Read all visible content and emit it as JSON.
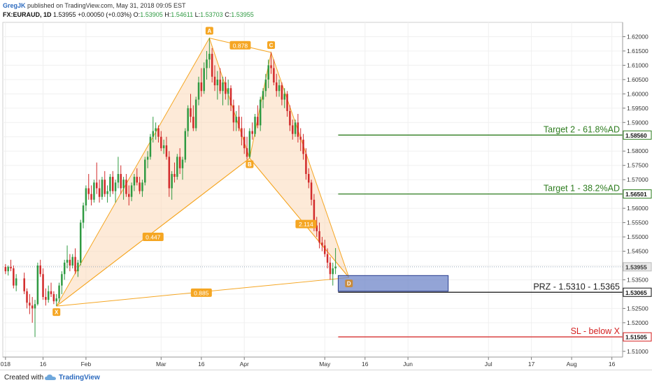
{
  "header": {
    "author": "GregJK",
    "published": "published on TradingView.com, May 31, 2018 09:05 EST",
    "symbol": "FX:EURAUD, 1D",
    "last": "1.53955",
    "change": "+0.00050 (+0.03%)",
    "o_label": "O:",
    "o": "1.53905",
    "h_label": "H:",
    "h": "1.54611",
    "l_label": "L:",
    "l": "1.53703",
    "c_label": "C:",
    "c": "1.53955"
  },
  "footer": {
    "created": "Created with",
    "brand": "TradingView"
  },
  "colors": {
    "up": "#2f9a42",
    "down": "#d22a2a",
    "pattern_line": "#f5a623",
    "pattern_fill": "#fbd9b8",
    "target": "#2e7d1f",
    "stop": "#d41f1f",
    "prz_fill": "#6f86c8",
    "prz_edge": "#2a3f8f"
  },
  "chart_data": {
    "type": "candlestick",
    "instrument": "FX:EURAUD",
    "timeframe": "1D",
    "ylim": [
      1.508,
      1.625
    ],
    "y_ticks": [
      "1.51000",
      "1.51500",
      "1.52000",
      "1.52500",
      "1.53000",
      "1.53500",
      "1.54000",
      "1.54500",
      "1.55000",
      "1.55500",
      "1.56000",
      "1.56500",
      "1.57000",
      "1.57500",
      "1.58000",
      "1.58500",
      "1.59000",
      "1.59500",
      "1.60000",
      "1.60500",
      "1.61000",
      "1.61500",
      "1.62000"
    ],
    "x_ticks": [
      {
        "label": "018",
        "day": 0
      },
      {
        "label": "16",
        "day": 14
      },
      {
        "label": "Feb",
        "day": 30
      },
      {
        "label": "Mar",
        "day": 58
      },
      {
        "label": "16",
        "day": 73
      },
      {
        "label": "Apr",
        "day": 89
      },
      {
        "label": "May",
        "day": 119
      },
      {
        "label": "16",
        "day": 134
      },
      {
        "label": "Jun",
        "day": 150
      },
      {
        "label": "Jul",
        "day": 180
      },
      {
        "label": "17",
        "day": 196
      },
      {
        "label": "Aug",
        "day": 211
      },
      {
        "label": "16",
        "day": 226
      }
    ],
    "candles": [
      {
        "d": 0,
        "o": 1.5395,
        "h": 1.5405,
        "l": 1.537,
        "c": 1.538
      },
      {
        "d": 1,
        "o": 1.538,
        "h": 1.54,
        "l": 1.5365,
        "c": 1.5395
      },
      {
        "d": 2,
        "o": 1.5395,
        "h": 1.542,
        "l": 1.538,
        "c": 1.539
      },
      {
        "d": 3,
        "o": 1.539,
        "h": 1.54,
        "l": 1.532,
        "c": 1.533
      },
      {
        "d": 4,
        "o": 1.533,
        "h": 1.537,
        "l": 1.531,
        "c": 1.5355
      },
      {
        "d": 7,
        "o": 1.5355,
        "h": 1.5375,
        "l": 1.53,
        "c": 1.531
      },
      {
        "d": 8,
        "o": 1.531,
        "h": 1.532,
        "l": 1.525,
        "c": 1.527
      },
      {
        "d": 9,
        "o": 1.527,
        "h": 1.53,
        "l": 1.523,
        "c": 1.526
      },
      {
        "d": 10,
        "o": 1.526,
        "h": 1.529,
        "l": 1.52,
        "c": 1.525
      },
      {
        "d": 11,
        "o": 1.525,
        "h": 1.528,
        "l": 1.515,
        "c": 1.5265
      },
      {
        "d": 12,
        "o": 1.5265,
        "h": 1.541,
        "l": 1.526,
        "c": 1.54
      },
      {
        "d": 13,
        "o": 1.54,
        "h": 1.542,
        "l": 1.536,
        "c": 1.537
      },
      {
        "d": 14,
        "o": 1.537,
        "h": 1.539,
        "l": 1.528,
        "c": 1.529
      },
      {
        "d": 15,
        "o": 1.529,
        "h": 1.532,
        "l": 1.526,
        "c": 1.528
      },
      {
        "d": 16,
        "o": 1.528,
        "h": 1.533,
        "l": 1.527,
        "c": 1.531
      },
      {
        "d": 17,
        "o": 1.531,
        "h": 1.534,
        "l": 1.529,
        "c": 1.53
      },
      {
        "d": 18,
        "o": 1.53,
        "h": 1.531,
        "l": 1.5265,
        "c": 1.5275
      },
      {
        "d": 19,
        "o": 1.5275,
        "h": 1.53,
        "l": 1.5258,
        "c": 1.5285
      },
      {
        "d": 20,
        "o": 1.5285,
        "h": 1.534,
        "l": 1.527,
        "c": 1.533
      },
      {
        "d": 21,
        "o": 1.533,
        "h": 1.538,
        "l": 1.53,
        "c": 1.537
      },
      {
        "d": 22,
        "o": 1.537,
        "h": 1.542,
        "l": 1.535,
        "c": 1.541
      },
      {
        "d": 23,
        "o": 1.541,
        "h": 1.547,
        "l": 1.539,
        "c": 1.542
      },
      {
        "d": 24,
        "o": 1.542,
        "h": 1.544,
        "l": 1.538,
        "c": 1.54
      },
      {
        "d": 25,
        "o": 1.54,
        "h": 1.544,
        "l": 1.539,
        "c": 1.543
      },
      {
        "d": 26,
        "o": 1.543,
        "h": 1.546,
        "l": 1.537,
        "c": 1.538
      },
      {
        "d": 27,
        "o": 1.538,
        "h": 1.542,
        "l": 1.536,
        "c": 1.541
      },
      {
        "d": 28,
        "o": 1.541,
        "h": 1.556,
        "l": 1.54,
        "c": 1.555
      },
      {
        "d": 29,
        "o": 1.555,
        "h": 1.562,
        "l": 1.553,
        "c": 1.561
      },
      {
        "d": 30,
        "o": 1.561,
        "h": 1.568,
        "l": 1.559,
        "c": 1.567
      },
      {
        "d": 31,
        "o": 1.567,
        "h": 1.572,
        "l": 1.563,
        "c": 1.565
      },
      {
        "d": 32,
        "o": 1.565,
        "h": 1.568,
        "l": 1.561,
        "c": 1.563
      },
      {
        "d": 33,
        "o": 1.563,
        "h": 1.57,
        "l": 1.562,
        "c": 1.569
      },
      {
        "d": 34,
        "o": 1.569,
        "h": 1.576,
        "l": 1.565,
        "c": 1.567
      },
      {
        "d": 35,
        "o": 1.567,
        "h": 1.57,
        "l": 1.562,
        "c": 1.564
      },
      {
        "d": 36,
        "o": 1.564,
        "h": 1.571,
        "l": 1.563,
        "c": 1.57
      },
      {
        "d": 37,
        "o": 1.57,
        "h": 1.573,
        "l": 1.564,
        "c": 1.565
      },
      {
        "d": 38,
        "o": 1.565,
        "h": 1.568,
        "l": 1.562,
        "c": 1.566
      },
      {
        "d": 39,
        "o": 1.566,
        "h": 1.572,
        "l": 1.564,
        "c": 1.571
      },
      {
        "d": 40,
        "o": 1.571,
        "h": 1.573,
        "l": 1.565,
        "c": 1.566
      },
      {
        "d": 41,
        "o": 1.566,
        "h": 1.57,
        "l": 1.562,
        "c": 1.569
      },
      {
        "d": 42,
        "o": 1.569,
        "h": 1.578,
        "l": 1.567,
        "c": 1.572
      },
      {
        "d": 43,
        "o": 1.572,
        "h": 1.575,
        "l": 1.565,
        "c": 1.567
      },
      {
        "d": 44,
        "o": 1.567,
        "h": 1.571,
        "l": 1.563,
        "c": 1.57
      },
      {
        "d": 45,
        "o": 1.57,
        "h": 1.572,
        "l": 1.564,
        "c": 1.565
      },
      {
        "d": 46,
        "o": 1.565,
        "h": 1.568,
        "l": 1.561,
        "c": 1.564
      },
      {
        "d": 47,
        "o": 1.564,
        "h": 1.569,
        "l": 1.5625,
        "c": 1.568
      },
      {
        "d": 48,
        "o": 1.568,
        "h": 1.572,
        "l": 1.566,
        "c": 1.571
      },
      {
        "d": 49,
        "o": 1.571,
        "h": 1.574,
        "l": 1.568,
        "c": 1.569
      },
      {
        "d": 50,
        "o": 1.569,
        "h": 1.571,
        "l": 1.565,
        "c": 1.566
      },
      {
        "d": 51,
        "o": 1.566,
        "h": 1.57,
        "l": 1.564,
        "c": 1.569
      },
      {
        "d": 52,
        "o": 1.569,
        "h": 1.578,
        "l": 1.568,
        "c": 1.577
      },
      {
        "d": 53,
        "o": 1.577,
        "h": 1.58,
        "l": 1.574,
        "c": 1.578
      },
      {
        "d": 54,
        "o": 1.578,
        "h": 1.586,
        "l": 1.577,
        "c": 1.585
      },
      {
        "d": 55,
        "o": 1.585,
        "h": 1.592,
        "l": 1.583,
        "c": 1.587
      },
      {
        "d": 56,
        "o": 1.587,
        "h": 1.59,
        "l": 1.584,
        "c": 1.588
      },
      {
        "d": 57,
        "o": 1.588,
        "h": 1.589,
        "l": 1.583,
        "c": 1.585
      },
      {
        "d": 58,
        "o": 1.585,
        "h": 1.587,
        "l": 1.58,
        "c": 1.581
      },
      {
        "d": 59,
        "o": 1.581,
        "h": 1.584,
        "l": 1.579,
        "c": 1.582
      },
      {
        "d": 60,
        "o": 1.582,
        "h": 1.585,
        "l": 1.577,
        "c": 1.578
      },
      {
        "d": 61,
        "o": 1.578,
        "h": 1.58,
        "l": 1.564,
        "c": 1.567
      },
      {
        "d": 62,
        "o": 1.567,
        "h": 1.573,
        "l": 1.563,
        "c": 1.572
      },
      {
        "d": 63,
        "o": 1.572,
        "h": 1.576,
        "l": 1.569,
        "c": 1.571
      },
      {
        "d": 64,
        "o": 1.571,
        "h": 1.579,
        "l": 1.57,
        "c": 1.578
      },
      {
        "d": 65,
        "o": 1.578,
        "h": 1.581,
        "l": 1.572,
        "c": 1.574
      },
      {
        "d": 66,
        "o": 1.574,
        "h": 1.578,
        "l": 1.57,
        "c": 1.577
      },
      {
        "d": 67,
        "o": 1.577,
        "h": 1.588,
        "l": 1.576,
        "c": 1.587
      },
      {
        "d": 68,
        "o": 1.587,
        "h": 1.596,
        "l": 1.585,
        "c": 1.595
      },
      {
        "d": 69,
        "o": 1.595,
        "h": 1.6,
        "l": 1.59,
        "c": 1.592
      },
      {
        "d": 70,
        "o": 1.592,
        "h": 1.596,
        "l": 1.587,
        "c": 1.588
      },
      {
        "d": 71,
        "o": 1.588,
        "h": 1.599,
        "l": 1.587,
        "c": 1.598
      },
      {
        "d": 72,
        "o": 1.598,
        "h": 1.606,
        "l": 1.596,
        "c": 1.604
      },
      {
        "d": 73,
        "o": 1.604,
        "h": 1.609,
        "l": 1.599,
        "c": 1.601
      },
      {
        "d": 74,
        "o": 1.601,
        "h": 1.611,
        "l": 1.6,
        "c": 1.609
      },
      {
        "d": 75,
        "o": 1.609,
        "h": 1.615,
        "l": 1.605,
        "c": 1.612
      },
      {
        "d": 76,
        "o": 1.612,
        "h": 1.6195,
        "l": 1.609,
        "c": 1.614
      },
      {
        "d": 77,
        "o": 1.614,
        "h": 1.616,
        "l": 1.604,
        "c": 1.606
      },
      {
        "d": 78,
        "o": 1.606,
        "h": 1.61,
        "l": 1.601,
        "c": 1.603
      },
      {
        "d": 79,
        "o": 1.603,
        "h": 1.608,
        "l": 1.598,
        "c": 1.605
      },
      {
        "d": 80,
        "o": 1.605,
        "h": 1.609,
        "l": 1.6,
        "c": 1.601
      },
      {
        "d": 81,
        "o": 1.601,
        "h": 1.606,
        "l": 1.596,
        "c": 1.604
      },
      {
        "d": 82,
        "o": 1.604,
        "h": 1.606,
        "l": 1.598,
        "c": 1.6
      },
      {
        "d": 83,
        "o": 1.6,
        "h": 1.605,
        "l": 1.596,
        "c": 1.602
      },
      {
        "d": 84,
        "o": 1.602,
        "h": 1.603,
        "l": 1.594,
        "c": 1.596
      },
      {
        "d": 85,
        "o": 1.596,
        "h": 1.598,
        "l": 1.587,
        "c": 1.59
      },
      {
        "d": 86,
        "o": 1.59,
        "h": 1.594,
        "l": 1.587,
        "c": 1.592
      },
      {
        "d": 87,
        "o": 1.592,
        "h": 1.596,
        "l": 1.587,
        "c": 1.588
      },
      {
        "d": 88,
        "o": 1.588,
        "h": 1.592,
        "l": 1.582,
        "c": 1.585
      },
      {
        "d": 89,
        "o": 1.585,
        "h": 1.588,
        "l": 1.579,
        "c": 1.581
      },
      {
        "d": 90,
        "o": 1.581,
        "h": 1.585,
        "l": 1.577,
        "c": 1.578
      },
      {
        "d": 91,
        "o": 1.578,
        "h": 1.588,
        "l": 1.5775,
        "c": 1.587
      },
      {
        "d": 92,
        "o": 1.587,
        "h": 1.59,
        "l": 1.584,
        "c": 1.586
      },
      {
        "d": 93,
        "o": 1.586,
        "h": 1.593,
        "l": 1.585,
        "c": 1.592
      },
      {
        "d": 94,
        "o": 1.592,
        "h": 1.596,
        "l": 1.588,
        "c": 1.589
      },
      {
        "d": 95,
        "o": 1.589,
        "h": 1.599,
        "l": 1.587,
        "c": 1.598
      },
      {
        "d": 96,
        "o": 1.598,
        "h": 1.602,
        "l": 1.595,
        "c": 1.601
      },
      {
        "d": 97,
        "o": 1.601,
        "h": 1.607,
        "l": 1.599,
        "c": 1.605
      },
      {
        "d": 98,
        "o": 1.605,
        "h": 1.612,
        "l": 1.602,
        "c": 1.61
      },
      {
        "d": 99,
        "o": 1.61,
        "h": 1.6145,
        "l": 1.607,
        "c": 1.609
      },
      {
        "d": 100,
        "o": 1.609,
        "h": 1.612,
        "l": 1.603,
        "c": 1.604
      },
      {
        "d": 101,
        "o": 1.604,
        "h": 1.607,
        "l": 1.599,
        "c": 1.601
      },
      {
        "d": 102,
        "o": 1.601,
        "h": 1.605,
        "l": 1.599,
        "c": 1.603
      },
      {
        "d": 103,
        "o": 1.603,
        "h": 1.604,
        "l": 1.596,
        "c": 1.598
      },
      {
        "d": 104,
        "o": 1.598,
        "h": 1.602,
        "l": 1.595,
        "c": 1.6
      },
      {
        "d": 105,
        "o": 1.6,
        "h": 1.601,
        "l": 1.592,
        "c": 1.594
      },
      {
        "d": 106,
        "o": 1.594,
        "h": 1.596,
        "l": 1.587,
        "c": 1.589
      },
      {
        "d": 107,
        "o": 1.589,
        "h": 1.591,
        "l": 1.584,
        "c": 1.586
      },
      {
        "d": 108,
        "o": 1.586,
        "h": 1.591,
        "l": 1.585,
        "c": 1.59
      },
      {
        "d": 109,
        "o": 1.59,
        "h": 1.593,
        "l": 1.583,
        "c": 1.585
      },
      {
        "d": 110,
        "o": 1.585,
        "h": 1.588,
        "l": 1.58,
        "c": 1.584
      },
      {
        "d": 111,
        "o": 1.584,
        "h": 1.586,
        "l": 1.577,
        "c": 1.579
      },
      {
        "d": 112,
        "o": 1.579,
        "h": 1.581,
        "l": 1.57,
        "c": 1.572
      },
      {
        "d": 113,
        "o": 1.572,
        "h": 1.574,
        "l": 1.567,
        "c": 1.569
      },
      {
        "d": 114,
        "o": 1.569,
        "h": 1.57,
        "l": 1.561,
        "c": 1.563
      },
      {
        "d": 115,
        "o": 1.563,
        "h": 1.565,
        "l": 1.552,
        "c": 1.554
      },
      {
        "d": 116,
        "o": 1.554,
        "h": 1.557,
        "l": 1.55,
        "c": 1.552
      },
      {
        "d": 117,
        "o": 1.552,
        "h": 1.555,
        "l": 1.546,
        "c": 1.548
      },
      {
        "d": 118,
        "o": 1.548,
        "h": 1.55,
        "l": 1.545,
        "c": 1.547
      },
      {
        "d": 119,
        "o": 1.547,
        "h": 1.549,
        "l": 1.543,
        "c": 1.544
      },
      {
        "d": 120,
        "o": 1.544,
        "h": 1.546,
        "l": 1.539,
        "c": 1.541
      },
      {
        "d": 121,
        "o": 1.541,
        "h": 1.543,
        "l": 1.535,
        "c": 1.537
      },
      {
        "d": 122,
        "o": 1.537,
        "h": 1.541,
        "l": 1.533,
        "c": 1.539
      },
      {
        "d": 123,
        "o": 1.539,
        "h": 1.5461,
        "l": 1.537,
        "c": 1.5396
      }
    ],
    "pattern": {
      "name": "bat",
      "points": [
        {
          "label": "X",
          "day": 19,
          "price": 1.5258
        },
        {
          "label": "A",
          "day": 76,
          "price": 1.6195
        },
        {
          "label": "B",
          "day": 91,
          "price": 1.5775
        },
        {
          "label": "C",
          "day": 99,
          "price": 1.6145
        },
        {
          "label": "D",
          "day": 128,
          "price": 1.5358
        }
      ],
      "ratios": [
        {
          "label": "0.878",
          "day": 87.5,
          "price": 1.617
        },
        {
          "label": "0.447",
          "day": 55,
          "price": 1.55
        },
        {
          "label": "2.114",
          "day": 112,
          "price": 1.5545
        },
        {
          "label": "0.885",
          "day": 73,
          "price": 1.5305
        }
      ]
    },
    "prz": {
      "label": "PRZ - 1.5310 - 1.5365",
      "low": 1.531,
      "high": 1.5365,
      "from_day": 124,
      "to_day": 165
    },
    "levels": [
      {
        "name": "Target 2 - 61.8%AD",
        "price": 1.5856,
        "tag": "1.58560",
        "kind": "target"
      },
      {
        "name": "Target 1 - 38.2%AD",
        "price": 1.56501,
        "tag": "1.56501",
        "kind": "target"
      },
      {
        "name": "PRZ - 1.5310 - 1.5365",
        "price": 1.53065,
        "tag": "1.53065",
        "kind": "prz"
      },
      {
        "name": "SL - below X",
        "price": 1.51505,
        "tag": "1.51505",
        "kind": "stop"
      }
    ],
    "last_price": {
      "price": 1.53955,
      "tag": "1.53955"
    },
    "xlim": [
      -1,
      230
    ],
    "grid": true
  }
}
